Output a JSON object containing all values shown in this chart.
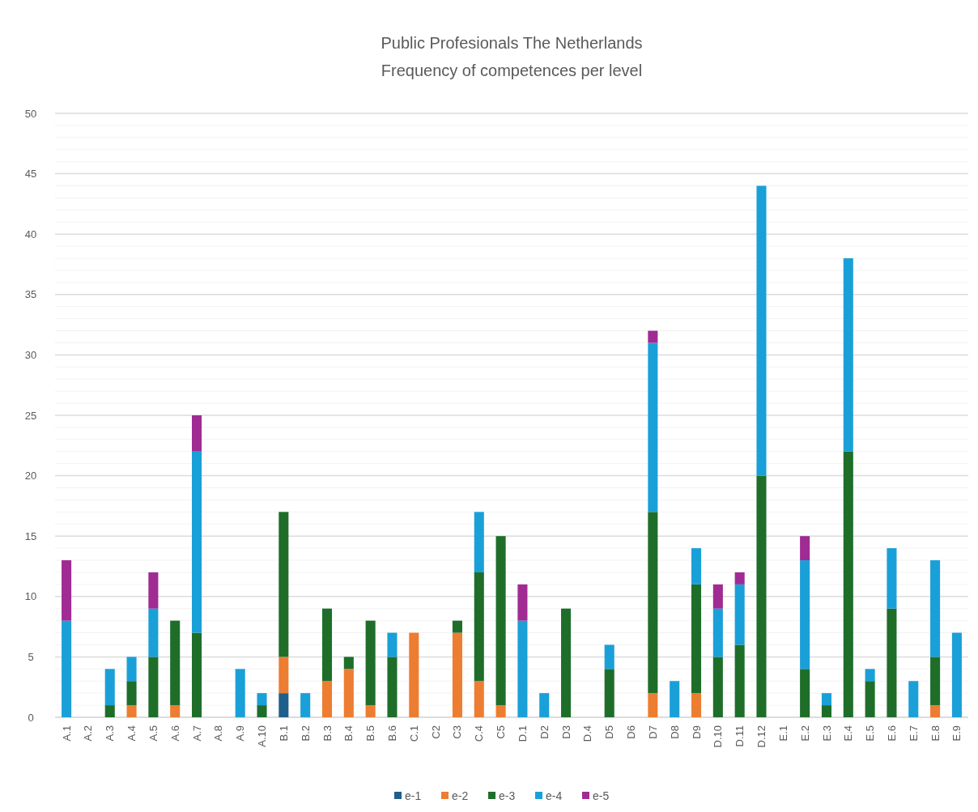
{
  "chart_data": {
    "type": "bar",
    "title": "Public Profesionals The Netherlands",
    "subtitle": "Frequency of competences per level",
    "stacked": true,
    "grid": "y",
    "legend": "bottom",
    "categories": [
      "A.1",
      "A.2",
      "A.3",
      "A.4",
      "A.5",
      "A.6",
      "A.7",
      "A.8",
      "A.9",
      "A.10",
      "B.1",
      "B.2",
      "B.3",
      "B.4",
      "B.5",
      "B.6",
      "C.1",
      "C2",
      "C3",
      "C.4",
      "C5",
      "D.1",
      "D2",
      "D3",
      "D.4",
      "D5",
      "D6",
      "D7",
      "D8",
      "D9",
      "D.10",
      "D.11",
      "D.12",
      "E.1",
      "E.2",
      "E.3",
      "E.4",
      "E.5",
      "E.6",
      "E.7",
      "E.8",
      "E.9"
    ],
    "ylim": [
      0,
      50
    ],
    "yticks": [
      0,
      {
        "value": 1,
        "label": null
      },
      {
        "value": 2,
        "label": null
      },
      {
        "value": 3,
        "label": null
      },
      {
        "value": 4,
        "label": null
      },
      5,
      {
        "value": 6,
        "label": null
      },
      {
        "value": 7,
        "label": null
      },
      {
        "value": 8,
        "label": null
      },
      {
        "value": 9,
        "label": null
      },
      10,
      {
        "value": 11,
        "label": null
      },
      {
        "value": 12,
        "label": null
      },
      {
        "value": 13,
        "label": null
      },
      {
        "value": 14,
        "label": null
      },
      15,
      {
        "value": 16,
        "label": null
      },
      {
        "value": 17,
        "label": null
      },
      {
        "value": 18,
        "label": null
      },
      {
        "value": 19,
        "label": null
      },
      20,
      {
        "value": 21,
        "label": null
      },
      {
        "value": 22,
        "label": null
      },
      {
        "value": 23,
        "label": null
      },
      {
        "value": 24,
        "label": null
      },
      25,
      {
        "value": 26,
        "label": null
      },
      {
        "value": 27,
        "label": null
      },
      {
        "value": 28,
        "label": null
      },
      {
        "value": 29,
        "label": null
      },
      30,
      {
        "value": 31,
        "label": null
      },
      {
        "value": 32,
        "label": null
      },
      {
        "value": 33,
        "label": null
      },
      {
        "value": 34,
        "label": null
      },
      35,
      {
        "value": 36,
        "label": null
      },
      {
        "value": 37,
        "label": null
      },
      {
        "value": 38,
        "label": null
      },
      {
        "value": 39,
        "label": null
      },
      40,
      {
        "value": 41,
        "label": null
      },
      {
        "value": 42,
        "label": null
      },
      {
        "value": 43,
        "label": null
      },
      {
        "value": 44,
        "label": null
      },
      45,
      {
        "value": 46,
        "label": null
      },
      {
        "value": 47,
        "label": null
      },
      {
        "value": 48,
        "label": null
      },
      {
        "value": 49,
        "label": null
      },
      50
    ],
    "series": [
      {
        "name": "e-1",
        "color": "#1f5f8b",
        "values": [
          0,
          0,
          0,
          0,
          0,
          0,
          0,
          0,
          0,
          0,
          2,
          0,
          0,
          0,
          0,
          0,
          0,
          0,
          0,
          0,
          0,
          0,
          0,
          0,
          0,
          0,
          0,
          0,
          0,
          0,
          0,
          0,
          0,
          0,
          0,
          0,
          0,
          0,
          0,
          0,
          0,
          0
        ]
      },
      {
        "name": "e-2",
        "color": "#ed7d31",
        "values": [
          0,
          0,
          0,
          1,
          0,
          1,
          0,
          0,
          0,
          0,
          3,
          0,
          3,
          4,
          1,
          0,
          7,
          0,
          7,
          3,
          1,
          0,
          0,
          0,
          0,
          0,
          0,
          2,
          0,
          2,
          0,
          0,
          0,
          0,
          0,
          0,
          0,
          0,
          0,
          0,
          1,
          0
        ]
      },
      {
        "name": "e-3",
        "color": "#1e6e2a",
        "values": [
          0,
          0,
          1,
          2,
          5,
          7,
          7,
          0,
          0,
          1,
          12,
          0,
          6,
          1,
          7,
          5,
          0,
          0,
          1,
          9,
          14,
          0,
          0,
          9,
          0,
          4,
          0,
          15,
          0,
          9,
          5,
          6,
          20,
          0,
          4,
          1,
          22,
          3,
          9,
          0,
          4,
          0
        ]
      },
      {
        "name": "e-4",
        "color": "#1aa0d8",
        "values": [
          8,
          0,
          3,
          2,
          4,
          0,
          15,
          0,
          4,
          1,
          0,
          2,
          0,
          0,
          0,
          2,
          0,
          0,
          0,
          5,
          0,
          8,
          2,
          0,
          0,
          2,
          0,
          14,
          3,
          3,
          4,
          5,
          24,
          0,
          9,
          1,
          16,
          1,
          5,
          3,
          8,
          7
        ]
      },
      {
        "name": "e-5",
        "color": "#a02b93",
        "values": [
          5,
          0,
          0,
          0,
          3,
          0,
          3,
          0,
          0,
          0,
          0,
          0,
          0,
          0,
          0,
          0,
          0,
          0,
          0,
          0,
          0,
          3,
          0,
          0,
          0,
          0,
          0,
          1,
          0,
          0,
          2,
          1,
          0,
          0,
          2,
          0,
          0,
          0,
          0,
          0,
          0,
          0
        ]
      }
    ]
  }
}
